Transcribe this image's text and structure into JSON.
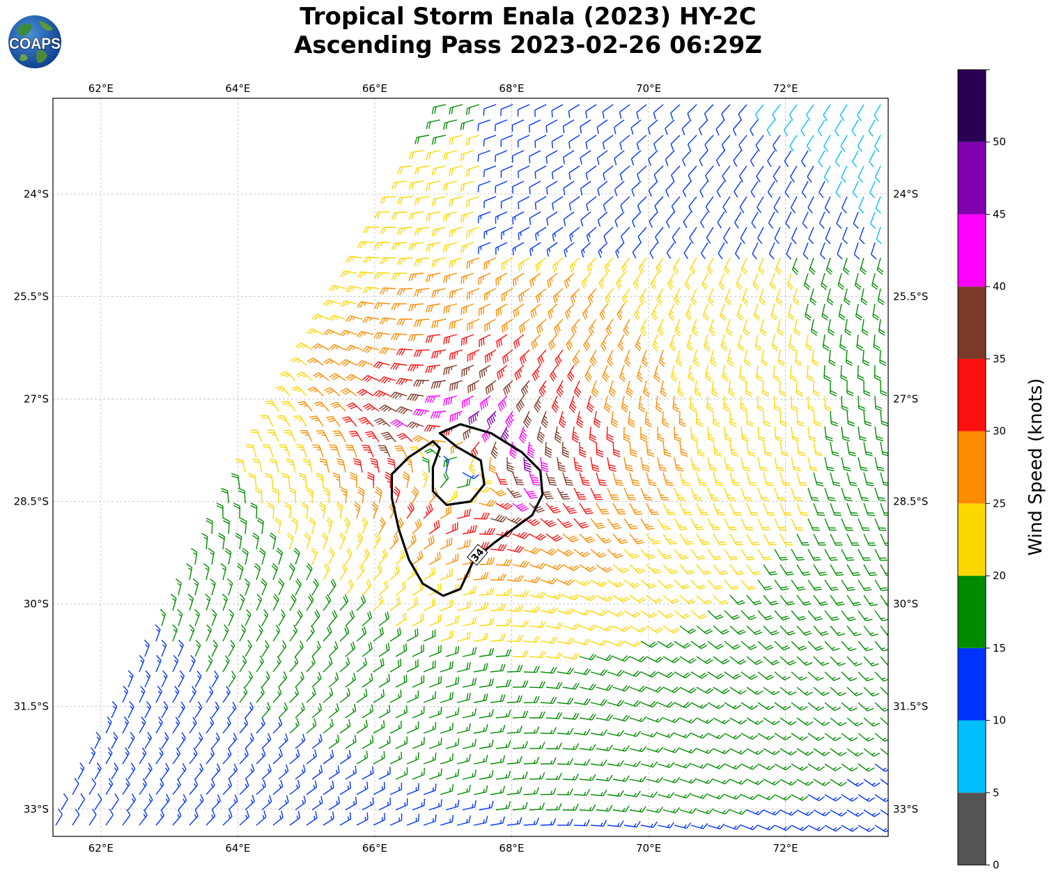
{
  "title": {
    "line1": "Tropical Storm Enala (2023) HY-2C",
    "line2": "Ascending Pass 2023-02-26 06:29Z"
  },
  "logo": {
    "text": "COAPS",
    "icon": "globe-icon"
  },
  "map": {
    "lon_range": [
      61.3,
      73.5
    ],
    "lat_range": [
      -33.4,
      -22.6
    ],
    "lon_ticks": [
      {
        "value": 62,
        "label": "62°E"
      },
      {
        "value": 64,
        "label": "64°E"
      },
      {
        "value": 66,
        "label": "66°E"
      },
      {
        "value": 68,
        "label": "68°E"
      },
      {
        "value": 70,
        "label": "70°E"
      },
      {
        "value": 72,
        "label": "72°E"
      }
    ],
    "lat_ticks": [
      {
        "value": -24,
        "label": "24°S"
      },
      {
        "value": -25.5,
        "label": "25.5°S"
      },
      {
        "value": -27,
        "label": "27°S"
      },
      {
        "value": -28.5,
        "label": "28.5°S"
      },
      {
        "value": -30,
        "label": "30°S"
      },
      {
        "value": -31.5,
        "label": "31.5°S"
      },
      {
        "value": -33,
        "label": "33°S"
      }
    ],
    "gridlines": true,
    "storm_center": {
      "lon": 67.2,
      "lat": -28.0
    },
    "contour_34kt": {
      "label": "34",
      "color": "#000000",
      "points": [
        [
          67.25,
          -27.37
        ],
        [
          67.7,
          -27.5
        ],
        [
          68.15,
          -27.78
        ],
        [
          68.42,
          -28.05
        ],
        [
          68.45,
          -28.4
        ],
        [
          68.3,
          -28.7
        ],
        [
          67.75,
          -29.1
        ],
        [
          67.45,
          -29.35
        ],
        [
          67.25,
          -29.78
        ],
        [
          67.0,
          -29.88
        ],
        [
          66.7,
          -29.7
        ],
        [
          66.5,
          -29.35
        ],
        [
          66.35,
          -28.9
        ],
        [
          66.25,
          -28.45
        ],
        [
          66.25,
          -28.1
        ],
        [
          66.5,
          -27.85
        ],
        [
          66.85,
          -27.62
        ],
        [
          66.95,
          -27.72
        ],
        [
          66.85,
          -28.0
        ],
        [
          66.85,
          -28.35
        ],
        [
          67.05,
          -28.55
        ],
        [
          67.4,
          -28.5
        ],
        [
          67.6,
          -28.25
        ],
        [
          67.55,
          -27.9
        ],
        [
          67.2,
          -27.7
        ],
        [
          66.95,
          -27.5
        ],
        [
          67.25,
          -27.37
        ]
      ],
      "label_at": {
        "lon": 67.5,
        "lat": -29.28
      }
    }
  },
  "colorbar": {
    "label": "Wind Speed (knots)",
    "tick_labels": [
      "0",
      "5",
      "10",
      "15",
      "20",
      "25",
      "30",
      "35",
      "40",
      "45",
      "50"
    ],
    "bins": [
      {
        "min": 0,
        "max": 5,
        "color": "#555555"
      },
      {
        "min": 5,
        "max": 10,
        "color": "#00BFFF"
      },
      {
        "min": 10,
        "max": 15,
        "color": "#0033FF"
      },
      {
        "min": 15,
        "max": 20,
        "color": "#008C00"
      },
      {
        "min": 20,
        "max": 25,
        "color": "#FFD700"
      },
      {
        "min": 25,
        "max": 30,
        "color": "#FF8C00"
      },
      {
        "min": 30,
        "max": 35,
        "color": "#FF1010"
      },
      {
        "min": 35,
        "max": 40,
        "color": "#7B3A28"
      },
      {
        "min": 40,
        "max": 45,
        "color": "#FF00FF"
      },
      {
        "min": 45,
        "max": 50,
        "color": "#8000B0"
      },
      {
        "min": 50,
        "max": 55,
        "color": "#2A0055"
      }
    ]
  }
}
